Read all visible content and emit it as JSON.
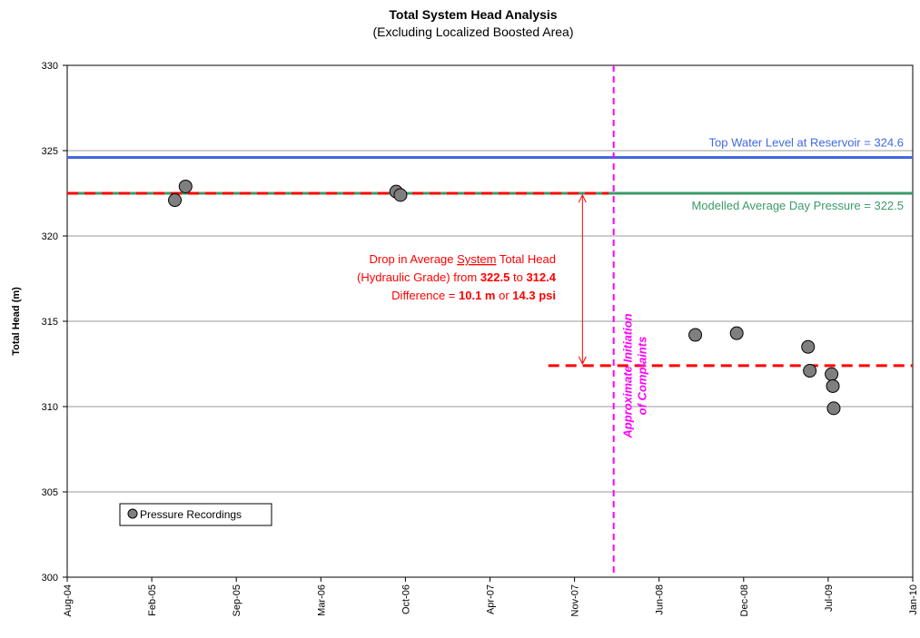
{
  "chart_data": {
    "type": "scatter",
    "title": "Total System Head Analysis",
    "subtitle": "(Excluding Localized Boosted Area)",
    "xlabel": "",
    "ylabel": "Total Head (m)",
    "xlim": [
      "2004-08-01",
      "2010-01-01"
    ],
    "ylim": [
      300,
      330
    ],
    "x_ticks": [
      "Aug-04",
      "Feb-05",
      "Sep-05",
      "Mar-06",
      "Oct-06",
      "Apr-07",
      "Nov-07",
      "Jun-08",
      "Dec-08",
      "Jul-09",
      "Jan-10"
    ],
    "y_ticks": [
      300,
      305,
      310,
      315,
      320,
      325,
      330
    ],
    "grid": "horizontal",
    "series": [
      {
        "name": "Pressure Recordings",
        "color": "#7f7f7f",
        "points": [
          {
            "x": "2005-04-10",
            "y": 322.1
          },
          {
            "x": "2005-05-05",
            "y": 322.9
          },
          {
            "x": "2006-09-10",
            "y": 322.6
          },
          {
            "x": "2006-09-20",
            "y": 322.4
          },
          {
            "x": "2008-08-10",
            "y": 314.2
          },
          {
            "x": "2008-11-15",
            "y": 314.3
          },
          {
            "x": "2009-05-01",
            "y": 313.5
          },
          {
            "x": "2009-05-05",
            "y": 312.1
          },
          {
            "x": "2009-06-25",
            "y": 311.9
          },
          {
            "x": "2009-06-28",
            "y": 311.2
          },
          {
            "x": "2009-06-30",
            "y": 309.9
          }
        ]
      }
    ],
    "reference_lines": [
      {
        "label": "Top Water Level at Reservoir = 324.6",
        "y": 324.6,
        "color": "#4169e1",
        "style": "solid"
      },
      {
        "label": "Modelled Average Day Pressure = 322.5",
        "y": 322.5,
        "color": "#3c9a6a",
        "style": "solid"
      },
      {
        "label": "",
        "y": 322.5,
        "x_range": [
          "2004-08-01",
          "2008-01-20"
        ],
        "color": "#ff0000",
        "style": "dashed"
      },
      {
        "label": "",
        "y": 312.4,
        "x_range": [
          "2007-09-01",
          "2010-01-01"
        ],
        "color": "#ff0000",
        "style": "dashed"
      }
    ],
    "vertical_line": {
      "x": "2008-02-01",
      "label_line1": "Approximate Initiation",
      "label_line2": "of Complaints",
      "color": "#ff00ff"
    },
    "arrow": {
      "x": "2007-11-20",
      "y_from": 322.5,
      "y_to": 312.4,
      "color": "#ff0000"
    },
    "annotation": {
      "color": "#ff0000",
      "line1": "Drop in Average System Total Head",
      "line2": "(Hydraulic Grade) from 322.5 to 312.4",
      "line3": "Difference = 10.1 m or 14.3 psi"
    },
    "legend": {
      "label": "Pressure Recordings",
      "position": "bottom-left"
    }
  }
}
